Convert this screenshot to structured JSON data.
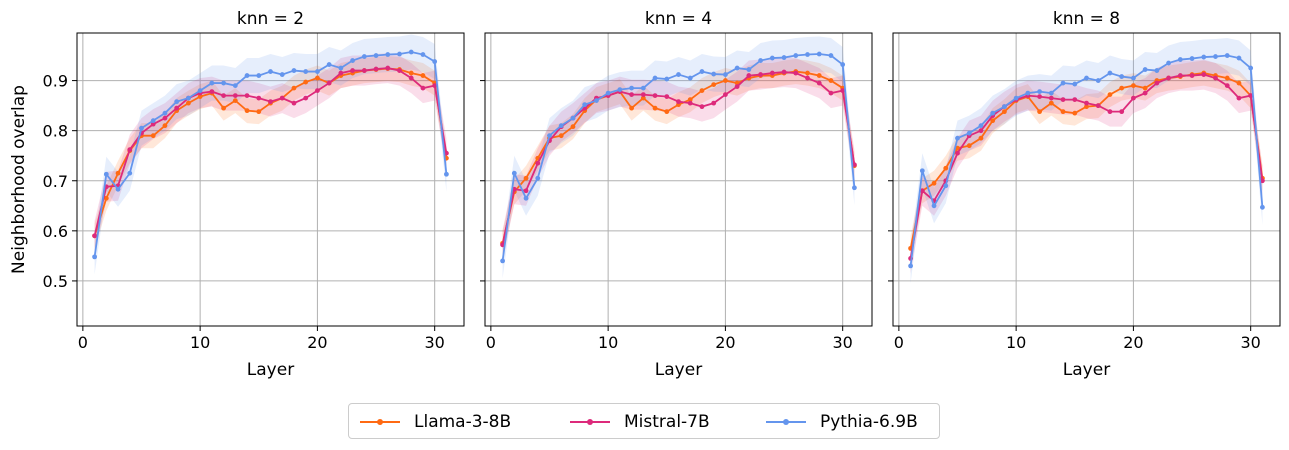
{
  "chart_data": {
    "type": "line",
    "ylabel": "Neighborhood overlap",
    "xlabel": "Layer",
    "xlim": [
      -0.5,
      32.5
    ],
    "ylim": [
      0.41,
      0.995
    ],
    "xticks": [
      0,
      10,
      20,
      30
    ],
    "yticks": [
      0.5,
      0.6,
      0.7,
      0.8,
      0.9
    ],
    "grid": true,
    "legend": {
      "position": "bottom-center",
      "entries": [
        "Llama-3-8B",
        "Mistral-7B",
        "Pythia-6.9B"
      ]
    },
    "colors": {
      "Llama-3-8B": "#ff6a13",
      "Mistral-7B": "#dd2a7b",
      "Pythia-6.9B": "#6495ed"
    },
    "panels": [
      {
        "title": "knn = 2",
        "x": [
          1,
          2,
          3,
          4,
          5,
          6,
          7,
          8,
          9,
          10,
          11,
          12,
          13,
          14,
          15,
          16,
          17,
          18,
          19,
          20,
          21,
          22,
          23,
          24,
          25,
          26,
          27,
          28,
          29,
          30,
          31
        ],
        "series": [
          {
            "name": "Llama-3-8B",
            "values": [
              0.59,
              0.665,
              0.715,
              0.76,
              0.79,
              0.79,
              0.81,
              0.84,
              0.855,
              0.868,
              0.875,
              0.845,
              0.86,
              0.84,
              0.838,
              0.855,
              0.865,
              0.885,
              0.897,
              0.905,
              0.895,
              0.91,
              0.915,
              0.92,
              0.922,
              0.924,
              0.922,
              0.915,
              0.91,
              0.895,
              0.745
            ],
            "spread": 0.025
          },
          {
            "name": "Mistral-7B",
            "values": [
              0.59,
              0.688,
              0.69,
              0.762,
              0.795,
              0.813,
              0.825,
              0.845,
              0.865,
              0.875,
              0.878,
              0.87,
              0.87,
              0.87,
              0.865,
              0.858,
              0.865,
              0.855,
              0.865,
              0.88,
              0.895,
              0.915,
              0.92,
              0.92,
              0.923,
              0.925,
              0.92,
              0.905,
              0.885,
              0.89,
              0.755
            ],
            "spread": 0.03
          },
          {
            "name": "Pythia-6.9B",
            "values": [
              0.548,
              0.713,
              0.683,
              0.715,
              0.805,
              0.82,
              0.835,
              0.858,
              0.865,
              0.88,
              0.895,
              0.895,
              0.89,
              0.91,
              0.91,
              0.918,
              0.912,
              0.92,
              0.918,
              0.918,
              0.932,
              0.925,
              0.94,
              0.948,
              0.95,
              0.952,
              0.953,
              0.957,
              0.952,
              0.938,
              0.713
            ],
            "spread": 0.035
          }
        ]
      },
      {
        "title": "knn = 4",
        "x": [
          1,
          2,
          3,
          4,
          5,
          6,
          7,
          8,
          9,
          10,
          11,
          12,
          13,
          14,
          15,
          16,
          17,
          18,
          19,
          20,
          21,
          22,
          23,
          24,
          25,
          26,
          27,
          28,
          29,
          30,
          31
        ],
        "series": [
          {
            "name": "Llama-3-8B",
            "values": [
              0.575,
              0.678,
              0.705,
              0.745,
              0.785,
              0.79,
              0.808,
              0.84,
              0.862,
              0.87,
              0.878,
              0.845,
              0.865,
              0.845,
              0.838,
              0.852,
              0.862,
              0.88,
              0.892,
              0.9,
              0.895,
              0.905,
              0.91,
              0.91,
              0.915,
              0.918,
              0.915,
              0.91,
              0.9,
              0.885,
              0.73
            ],
            "spread": 0.025
          },
          {
            "name": "Mistral-7B",
            "values": [
              0.572,
              0.683,
              0.68,
              0.735,
              0.78,
              0.808,
              0.825,
              0.845,
              0.865,
              0.87,
              0.878,
              0.872,
              0.872,
              0.87,
              0.868,
              0.858,
              0.855,
              0.848,
              0.855,
              0.872,
              0.888,
              0.91,
              0.912,
              0.915,
              0.917,
              0.915,
              0.905,
              0.895,
              0.875,
              0.88,
              0.732
            ],
            "spread": 0.03
          },
          {
            "name": "Pythia-6.9B",
            "values": [
              0.54,
              0.715,
              0.665,
              0.705,
              0.79,
              0.81,
              0.825,
              0.852,
              0.86,
              0.875,
              0.882,
              0.885,
              0.885,
              0.905,
              0.903,
              0.912,
              0.905,
              0.918,
              0.913,
              0.912,
              0.925,
              0.922,
              0.94,
              0.945,
              0.946,
              0.95,
              0.952,
              0.953,
              0.95,
              0.932,
              0.686
            ],
            "spread": 0.035
          }
        ]
      },
      {
        "title": "knn = 8",
        "x": [
          1,
          2,
          3,
          4,
          5,
          6,
          7,
          8,
          9,
          10,
          11,
          12,
          13,
          14,
          15,
          16,
          17,
          18,
          19,
          20,
          21,
          22,
          23,
          24,
          25,
          26,
          27,
          28,
          29,
          30,
          31
        ],
        "series": [
          {
            "name": "Llama-3-8B",
            "values": [
              0.565,
              0.68,
              0.695,
              0.725,
              0.765,
              0.77,
              0.785,
              0.82,
              0.838,
              0.86,
              0.868,
              0.838,
              0.855,
              0.838,
              0.835,
              0.848,
              0.85,
              0.872,
              0.885,
              0.89,
              0.885,
              0.9,
              0.905,
              0.908,
              0.912,
              0.915,
              0.91,
              0.905,
              0.895,
              0.87,
              0.705
            ],
            "spread": 0.025
          },
          {
            "name": "Mistral-7B",
            "values": [
              0.545,
              0.68,
              0.66,
              0.7,
              0.755,
              0.79,
              0.8,
              0.83,
              0.848,
              0.862,
              0.87,
              0.868,
              0.865,
              0.862,
              0.862,
              0.855,
              0.85,
              0.838,
              0.838,
              0.865,
              0.875,
              0.895,
              0.905,
              0.91,
              0.91,
              0.912,
              0.905,
              0.89,
              0.865,
              0.87,
              0.7
            ],
            "spread": 0.03
          },
          {
            "name": "Pythia-6.9B",
            "values": [
              0.53,
              0.72,
              0.65,
              0.69,
              0.785,
              0.795,
              0.81,
              0.835,
              0.848,
              0.865,
              0.875,
              0.878,
              0.875,
              0.895,
              0.893,
              0.905,
              0.9,
              0.915,
              0.908,
              0.905,
              0.922,
              0.92,
              0.935,
              0.942,
              0.944,
              0.947,
              0.948,
              0.95,
              0.945,
              0.925,
              0.647
            ],
            "spread": 0.035
          }
        ]
      }
    ]
  }
}
